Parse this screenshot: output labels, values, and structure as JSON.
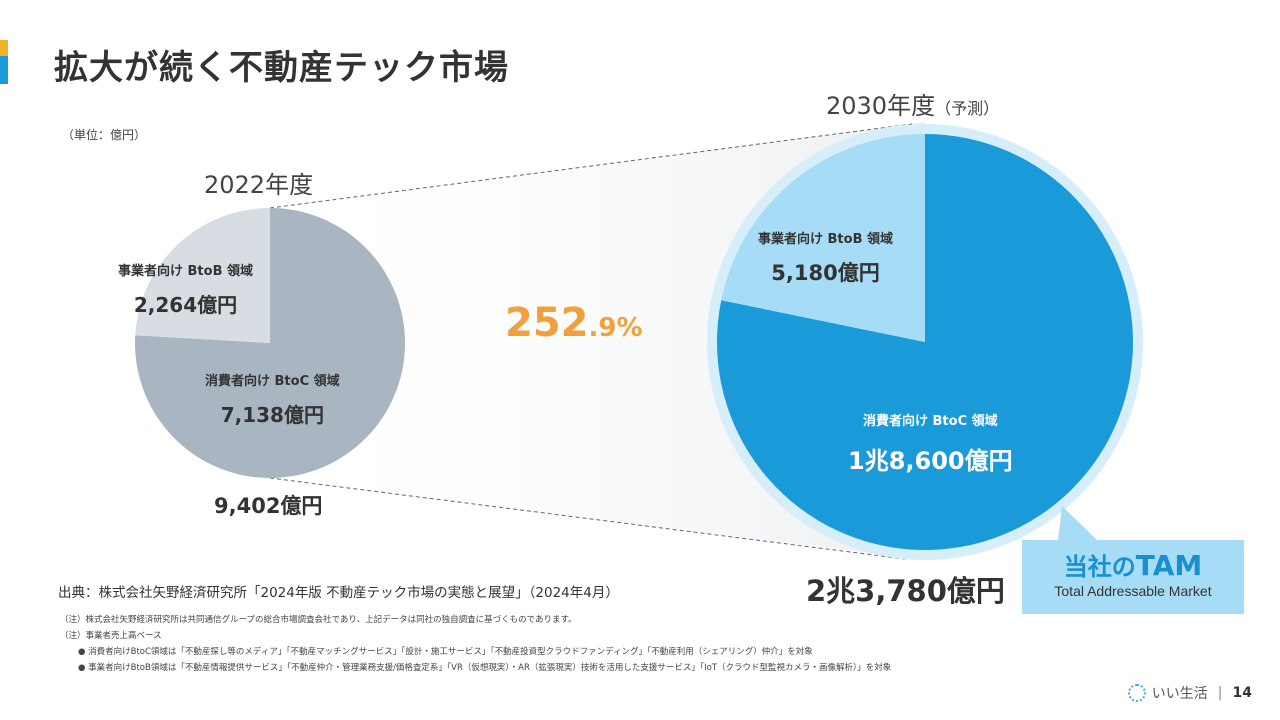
{
  "title": "拡大が続く不動産テック市場",
  "unit_label": "（単位：億円）",
  "colors": {
    "accent_yellow": "#f0b429",
    "accent_blue": "#1a9ad8",
    "left_btoc": "#a9b5c1",
    "left_btob": "#d8dde3",
    "right_btoc": "#1a9ad8",
    "right_btob": "#a6dcf5",
    "growth": "#f2a03d"
  },
  "chart_data": [
    {
      "type": "pie",
      "title": "2022年度",
      "total_label": "9,402億円",
      "slices": [
        {
          "name": "消費者向け BtoC 領域",
          "value": 7138,
          "label": "7,138億円"
        },
        {
          "name": "事業者向け BtoB 領域",
          "value": 2264,
          "label": "2,264億円"
        }
      ]
    },
    {
      "type": "pie",
      "title": "2030年度",
      "title_note": "（予測）",
      "total_label": "2兆3,780億円",
      "slices": [
        {
          "name": "消費者向け BtoC 領域",
          "value": 18600,
          "label": "1兆8,600億円"
        },
        {
          "name": "事業者向け BtoB 領域",
          "value": 5180,
          "label": "5,180億円"
        }
      ]
    }
  ],
  "growth": {
    "main": "252",
    "decimal": ".9%"
  },
  "tam": {
    "title_prefix": "当社の",
    "title_big": "TAM",
    "subtitle": "Total Addressable  Market"
  },
  "source": "出典：株式会社矢野経済研究所「2024年版 不動産テック市場の実態と展望」（2024年4月）",
  "notes": [
    "（注）株式会社矢野経済研究所は共同通信グループの総合市場調査会社であり、上記データは同社の独自調査に基づくものであります。",
    "（注）事業者売上高ベース",
    "●  消費者向けBtoC領域は「不動産探し等のメディア」「不動産マッチングサービス」「設計・施工サービス」「不動産投資型クラウドファンディング」「不動産利用（シェアリング）仲介」を対象",
    "●  事業者向けBtoB領域は「不動産情報提供サービス」「不動産仲介・管理業務支援/価格査定系」「VR（仮想現実）・AR（拡張現実）技術を活用した支援サービス」「IoT（クラウド型監視カメラ・画像解析）」を対象"
  ],
  "footer": {
    "brand": "いい生活",
    "separator": "|",
    "page": "14"
  }
}
